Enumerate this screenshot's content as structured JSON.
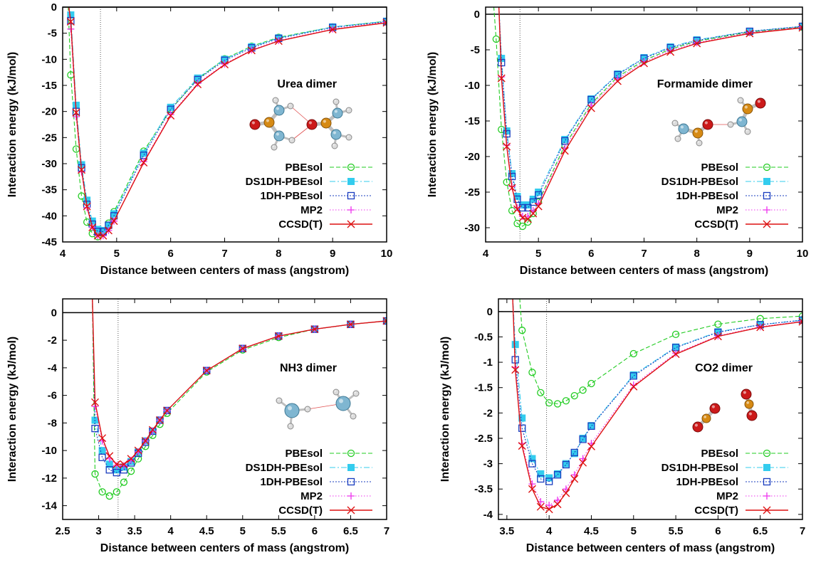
{
  "colors": {
    "PBEsol": "#22cc22",
    "DS1DH-PBEsol": "#33ccee",
    "1DH-PBEsol": "#1a3dbf",
    "MP2": "#ee33ee",
    "CCSD(T)": "#dd1111"
  },
  "chart_data": [
    {
      "type": "line",
      "title": "Urea dimer",
      "xlabel": "Distance between centers of mass (angstrom)",
      "ylabel": "Interaction energy (kJ/mol)",
      "xlim": [
        4,
        10
      ],
      "ylim": [
        -45,
        0
      ],
      "xticks": [
        4,
        5,
        6,
        7,
        8,
        9,
        10
      ],
      "yticks": [
        0,
        -5,
        -10,
        -15,
        -20,
        -25,
        -30,
        -35,
        -40,
        -45
      ],
      "xtick_labels": [
        "4",
        "5",
        "6",
        "7",
        "8",
        "9",
        "10"
      ],
      "ytick_labels": [
        "0",
        "-5",
        "-10",
        "-15",
        "-20",
        "-25",
        "-30",
        "-35",
        "-40",
        "-45"
      ],
      "equilibrium_x": 4.7,
      "legend_position": "bottom-right",
      "grid": false,
      "series": [
        {
          "name": "PBEsol",
          "marker": "open-circle",
          "dash": "dash",
          "x": [
            4.15,
            4.25,
            4.35,
            4.45,
            4.55,
            4.65,
            4.75,
            4.85,
            4.95,
            5.5,
            6.0,
            6.5,
            7.0,
            7.5,
            8.0,
            9.0,
            10.0
          ],
          "y": [
            -13.0,
            -27.2,
            -36.2,
            -41.2,
            -43.4,
            -44.0,
            -43.2,
            -41.4,
            -39.2,
            -27.6,
            -19.6,
            -13.8,
            -9.9,
            -7.5,
            -5.8,
            -3.8,
            -2.7
          ]
        },
        {
          "name": "DS1DH-PBEsol",
          "marker": "filled-square",
          "dash": "dashdot",
          "x": [
            4.15,
            4.25,
            4.35,
            4.45,
            4.55,
            4.65,
            4.75,
            4.85,
            4.95,
            5.5,
            6.0,
            6.5,
            7.0,
            7.5,
            8.0,
            9.0,
            10.0
          ],
          "y": [
            -1.5,
            -18.8,
            -30.2,
            -37.0,
            -41.0,
            -42.6,
            -42.8,
            -41.8,
            -39.6,
            -28.0,
            -19.2,
            -13.6,
            -10.0,
            -7.6,
            -5.9,
            -3.8,
            -2.7
          ]
        },
        {
          "name": "1DH-PBEsol",
          "marker": "open-square",
          "dash": "dot",
          "x": [
            4.15,
            4.25,
            4.35,
            4.45,
            4.55,
            4.65,
            4.75,
            4.85,
            4.95,
            5.5,
            6.0,
            6.5,
            7.0,
            7.5,
            8.0,
            9.0,
            10.0
          ],
          "y": [
            -2.6,
            -20.0,
            -30.8,
            -37.8,
            -41.6,
            -43.0,
            -43.0,
            -41.8,
            -40.0,
            -28.4,
            -19.6,
            -13.9,
            -10.2,
            -7.8,
            -6.0,
            -3.9,
            -2.8
          ]
        },
        {
          "name": "MP2",
          "marker": "plus",
          "dash": "dot2",
          "x": [
            4.15,
            4.25,
            4.35,
            4.45,
            4.55,
            4.65,
            4.75,
            4.85,
            4.95,
            5.5,
            6.0,
            6.5,
            7.0,
            7.5,
            8.0,
            9.0,
            10.0
          ],
          "y": [
            -4.2,
            -21.0,
            -31.6,
            -38.4,
            -42.2,
            -43.8,
            -43.8,
            -42.8,
            -41.0,
            -29.6,
            -20.6,
            -14.6,
            -10.9,
            -8.2,
            -6.4,
            -4.2,
            -2.9
          ]
        },
        {
          "name": "CCSD(T)",
          "marker": "cross",
          "dash": "solid",
          "x": [
            4.15,
            4.25,
            4.35,
            4.45,
            4.55,
            4.65,
            4.75,
            4.85,
            4.95,
            5.5,
            6.0,
            6.5,
            7.0,
            7.5,
            8.0,
            9.0,
            10.0
          ],
          "y": [
            -2.8,
            -20.2,
            -31.2,
            -38.2,
            -42.2,
            -43.8,
            -43.8,
            -42.8,
            -41.0,
            -29.8,
            -20.8,
            -14.8,
            -11.0,
            -8.3,
            -6.5,
            -4.3,
            -3.0
          ]
        }
      ]
    },
    {
      "type": "line",
      "title": "Formamide dimer",
      "xlabel": "Distance between centers of mass (angstrom)",
      "ylabel": "Interaction energy (kJ/mol)",
      "xlim": [
        4,
        10
      ],
      "ylim": [
        -32,
        1
      ],
      "xticks": [
        4,
        5,
        6,
        7,
        8,
        9,
        10
      ],
      "yticks": [
        0,
        -5,
        -10,
        -15,
        -20,
        -25,
        -30
      ],
      "xtick_labels": [
        "4",
        "5",
        "6",
        "7",
        "8",
        "9",
        "10"
      ],
      "ytick_labels": [
        "0",
        "-5",
        "-10",
        "-15",
        "-20",
        "-25",
        "-30"
      ],
      "equilibrium_x": 4.65,
      "legend_position": "bottom-right",
      "grid": false,
      "series": [
        {
          "name": "PBEsol",
          "marker": "open-circle",
          "dash": "dash",
          "x": [
            4.2,
            4.3,
            4.4,
            4.5,
            4.6,
            4.7,
            4.8,
            4.9,
            5.0,
            5.5,
            6.0,
            6.5,
            7.0,
            7.5,
            8.0,
            9.0,
            10.0
          ],
          "y": [
            -3.5,
            -16.2,
            -23.6,
            -27.6,
            -29.4,
            -29.8,
            -29.2,
            -28.0,
            -26.4,
            -18.4,
            -12.6,
            -8.8,
            -6.5,
            -4.9,
            -3.8,
            -2.5,
            -1.8
          ]
        },
        {
          "name": "DS1DH-PBEsol",
          "marker": "filled-square",
          "dash": "dashdot",
          "x": [
            4.3,
            4.4,
            4.5,
            4.6,
            4.7,
            4.8,
            4.9,
            5.0,
            5.5,
            6.0,
            6.5,
            7.0,
            7.5,
            8.0,
            9.0,
            10.0
          ],
          "y": [
            -6.2,
            -16.4,
            -22.4,
            -25.6,
            -26.8,
            -26.8,
            -26.0,
            -25.0,
            -17.6,
            -11.9,
            -8.4,
            -6.1,
            -4.6,
            -3.6,
            -2.4,
            -1.7
          ]
        },
        {
          "name": "1DH-PBEsol",
          "marker": "open-square",
          "dash": "dot",
          "x": [
            4.3,
            4.4,
            4.5,
            4.6,
            4.7,
            4.8,
            4.9,
            5.0,
            5.5,
            6.0,
            6.5,
            7.0,
            7.5,
            8.0,
            9.0,
            10.0
          ],
          "y": [
            -6.8,
            -16.8,
            -22.8,
            -26.0,
            -27.2,
            -27.2,
            -26.4,
            -25.4,
            -17.8,
            -12.0,
            -8.5,
            -6.2,
            -4.7,
            -3.7,
            -2.4,
            -1.7
          ]
        },
        {
          "name": "MP2",
          "marker": "plus",
          "dash": "dot2",
          "x": [
            4.3,
            4.4,
            4.5,
            4.6,
            4.7,
            4.8,
            4.9,
            5.0,
            5.5,
            6.0,
            6.5,
            7.0,
            7.5,
            8.0,
            9.0,
            10.0
          ],
          "y": [
            -8.8,
            -18.4,
            -24.2,
            -27.2,
            -28.4,
            -28.4,
            -27.6,
            -26.6,
            -18.8,
            -12.8,
            -9.1,
            -6.7,
            -5.1,
            -4.0,
            -2.6,
            -1.8
          ]
        },
        {
          "name": "CCSD(T)",
          "marker": "cross",
          "dash": "solid",
          "x": [
            4.3,
            4.4,
            4.5,
            4.6,
            4.7,
            4.8,
            4.9,
            5.0,
            5.5,
            6.0,
            6.5,
            7.0,
            7.5,
            8.0,
            9.0,
            10.0
          ],
          "y": [
            -9.0,
            -18.6,
            -24.4,
            -27.4,
            -28.6,
            -28.8,
            -28.0,
            -27.0,
            -19.2,
            -13.2,
            -9.4,
            -6.9,
            -5.3,
            -4.1,
            -2.7,
            -1.9
          ]
        }
      ]
    },
    {
      "type": "line",
      "title": "NH3 dimer",
      "xlabel": "Distance between centers of mass (angstrom)",
      "ylabel": "Interaction energy (kJ/mol)",
      "xlim": [
        2.5,
        7
      ],
      "ylim": [
        -15,
        1
      ],
      "xticks": [
        2.5,
        3,
        3.5,
        4,
        4.5,
        5,
        5.5,
        6,
        6.5,
        7
      ],
      "yticks": [
        0,
        -2,
        -4,
        -6,
        -8,
        -10,
        -12,
        -14
      ],
      "xtick_labels": [
        "2.5",
        "3",
        "3.5",
        "4",
        "4.5",
        "5",
        "5.5",
        "6",
        "6.5",
        "7"
      ],
      "ytick_labels": [
        "0",
        "-2",
        "-4",
        "-6",
        "-8",
        "-10",
        "-12",
        "-14"
      ],
      "equilibrium_x": 3.27,
      "legend_position": "bottom-right",
      "grid": false,
      "series": [
        {
          "name": "PBEsol",
          "marker": "open-circle",
          "dash": "dash",
          "x": [
            2.95,
            3.05,
            3.15,
            3.25,
            3.35,
            3.45,
            3.55,
            3.65,
            3.75,
            3.85,
            3.95,
            4.5,
            5.0,
            5.5,
            6.0,
            6.5,
            7.0
          ],
          "y": [
            -11.7,
            -13.0,
            -13.3,
            -13.0,
            -12.3,
            -11.5,
            -10.6,
            -9.7,
            -8.9,
            -8.1,
            -7.3,
            -4.3,
            -2.7,
            -1.8,
            -1.2,
            -0.85,
            -0.6
          ]
        },
        {
          "name": "DS1DH-PBEsol",
          "marker": "filled-square",
          "dash": "dashdot",
          "x": [
            2.95,
            3.05,
            3.15,
            3.25,
            3.35,
            3.45,
            3.55,
            3.65,
            3.75,
            3.85,
            3.95,
            4.5,
            5.0,
            5.5,
            6.0,
            6.5,
            7.0
          ],
          "y": [
            -7.8,
            -10.0,
            -11.0,
            -11.4,
            -11.2,
            -10.8,
            -10.1,
            -9.3,
            -8.6,
            -7.8,
            -7.1,
            -4.2,
            -2.6,
            -1.7,
            -1.2,
            -0.85,
            -0.6
          ]
        },
        {
          "name": "1DH-PBEsol",
          "marker": "open-square",
          "dash": "dot",
          "x": [
            2.95,
            3.05,
            3.15,
            3.25,
            3.35,
            3.45,
            3.55,
            3.65,
            3.75,
            3.85,
            3.95,
            4.5,
            5.0,
            5.5,
            6.0,
            6.5,
            7.0
          ],
          "y": [
            -8.4,
            -10.5,
            -11.4,
            -11.6,
            -11.4,
            -10.9,
            -10.2,
            -9.4,
            -8.6,
            -7.8,
            -7.1,
            -4.2,
            -2.6,
            -1.7,
            -1.2,
            -0.85,
            -0.6
          ]
        },
        {
          "name": "MP2",
          "marker": "plus",
          "dash": "dot2",
          "x": [
            2.95,
            3.05,
            3.15,
            3.25,
            3.35,
            3.45,
            3.55,
            3.65,
            3.75,
            3.85,
            3.95,
            4.5,
            5.0,
            5.5,
            6.0,
            6.5,
            7.0
          ],
          "y": [
            -6.8,
            -9.3,
            -10.6,
            -11.1,
            -11.1,
            -10.7,
            -10.1,
            -9.3,
            -8.6,
            -7.8,
            -7.1,
            -4.2,
            -2.6,
            -1.7,
            -1.2,
            -0.85,
            -0.6
          ]
        },
        {
          "name": "CCSD(T)",
          "marker": "cross",
          "dash": "solid",
          "x": [
            2.95,
            3.05,
            3.15,
            3.25,
            3.35,
            3.45,
            3.55,
            3.65,
            3.75,
            3.85,
            3.95,
            4.5,
            5.0,
            5.5,
            6.0,
            6.5,
            7.0
          ],
          "y": [
            -6.5,
            -9.1,
            -10.4,
            -11.0,
            -11.0,
            -10.6,
            -10.0,
            -9.3,
            -8.5,
            -7.8,
            -7.1,
            -4.2,
            -2.6,
            -1.7,
            -1.2,
            -0.85,
            -0.6
          ]
        }
      ]
    },
    {
      "type": "line",
      "title": "CO2 dimer",
      "xlabel": "Distance between centers of mass (angstrom)",
      "ylabel": "Interaction energy (kJ/mol)",
      "xlim": [
        3.4,
        7
      ],
      "ylim": [
        -4.1,
        0.25
      ],
      "xticks": [
        3.5,
        4,
        4.5,
        5,
        5.5,
        6,
        6.5,
        7
      ],
      "yticks": [
        0,
        -0.5,
        -1,
        -1.5,
        -2,
        -2.5,
        -3,
        -3.5,
        -4
      ],
      "xtick_labels": [
        "3.5",
        "4",
        "4.5",
        "5",
        "5.5",
        "6",
        "6.5",
        "7"
      ],
      "ytick_labels": [
        "0",
        "-0.5",
        "-1",
        "-1.5",
        "-2",
        "-2.5",
        "-3",
        "-3.5",
        "-4"
      ],
      "equilibrium_x": 3.97,
      "legend_position": "bottom-right",
      "grid": false,
      "series": [
        {
          "name": "PBEsol",
          "marker": "open-circle",
          "dash": "dash",
          "x": [
            3.68,
            3.8,
            3.9,
            4.0,
            4.1,
            4.2,
            4.3,
            4.4,
            4.5,
            5.0,
            5.5,
            6.0,
            6.5,
            7.0
          ],
          "y": [
            -0.37,
            -1.2,
            -1.6,
            -1.8,
            -1.82,
            -1.76,
            -1.66,
            -1.55,
            -1.42,
            -0.83,
            -0.45,
            -0.25,
            -0.14,
            -0.09
          ]
        },
        {
          "name": "DS1DH-PBEsol",
          "marker": "filled-square",
          "dash": "dashdot",
          "x": [
            3.6,
            3.68,
            3.8,
            3.9,
            4.0,
            4.1,
            4.2,
            4.3,
            4.4,
            4.5,
            5.0,
            5.5,
            6.0,
            6.5,
            7.0
          ],
          "y": [
            -0.65,
            -2.1,
            -2.9,
            -3.2,
            -3.28,
            -3.2,
            -3.0,
            -2.8,
            -2.5,
            -2.25,
            -1.25,
            -0.7,
            -0.4,
            -0.26,
            -0.17
          ]
        },
        {
          "name": "1DH-PBEsol",
          "marker": "open-square",
          "dash": "dot",
          "x": [
            3.6,
            3.68,
            3.8,
            3.9,
            4.0,
            4.1,
            4.2,
            4.3,
            4.4,
            4.5,
            5.0,
            5.5,
            6.0,
            6.5,
            7.0
          ],
          "y": [
            -0.95,
            -2.3,
            -3.0,
            -3.3,
            -3.35,
            -3.22,
            -3.02,
            -2.78,
            -2.52,
            -2.26,
            -1.27,
            -0.71,
            -0.41,
            -0.26,
            -0.17
          ]
        },
        {
          "name": "MP2",
          "marker": "plus",
          "dash": "dot2",
          "x": [
            3.6,
            3.68,
            3.8,
            3.9,
            4.0,
            4.1,
            4.2,
            4.3,
            4.4,
            4.5,
            5.0,
            5.5,
            6.0,
            6.5,
            7.0
          ],
          "y": [
            -1.1,
            -2.6,
            -3.4,
            -3.75,
            -3.82,
            -3.72,
            -3.5,
            -3.22,
            -2.9,
            -2.6,
            -1.45,
            -0.82,
            -0.48,
            -0.3,
            -0.19
          ]
        },
        {
          "name": "CCSD(T)",
          "marker": "cross",
          "dash": "solid",
          "x": [
            3.6,
            3.68,
            3.8,
            3.9,
            4.0,
            4.1,
            4.2,
            4.3,
            4.4,
            4.5,
            5.0,
            5.5,
            6.0,
            6.5,
            7.0
          ],
          "y": [
            -1.15,
            -2.65,
            -3.5,
            -3.85,
            -3.9,
            -3.8,
            -3.58,
            -3.3,
            -2.98,
            -2.66,
            -1.48,
            -0.84,
            -0.49,
            -0.31,
            -0.2
          ]
        }
      ]
    }
  ]
}
